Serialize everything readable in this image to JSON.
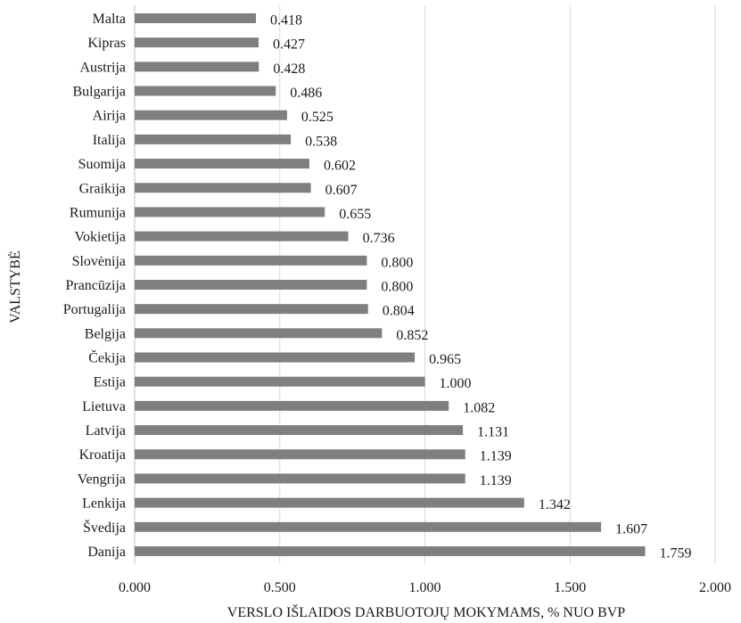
{
  "chart_data": {
    "type": "bar",
    "orientation": "horizontal",
    "categories": [
      "Malta",
      "Kipras",
      "Austrija",
      "Bulgarija",
      "Airija",
      "Italija",
      "Suomija",
      "Graikija",
      "Rumunija",
      "Vokietija",
      "Slovėnija",
      "Prancūzija",
      "Portugalija",
      "Belgija",
      "Čekija",
      "Estija",
      "Lietuva",
      "Latvija",
      "Kroatija",
      "Vengrija",
      "Lenkija",
      "Švedija",
      "Danija"
    ],
    "values": [
      0.418,
      0.427,
      0.428,
      0.486,
      0.525,
      0.538,
      0.602,
      0.607,
      0.655,
      0.736,
      0.8,
      0.8,
      0.804,
      0.852,
      0.965,
      1.0,
      1.082,
      1.131,
      1.139,
      1.139,
      1.342,
      1.607,
      1.759
    ],
    "value_labels": [
      "0.418",
      "0.427",
      "0.428",
      "0.486",
      "0.525",
      "0.538",
      "0.602",
      "0.607",
      "0.655",
      "0.736",
      "0.800",
      "0.800",
      "0.804",
      "0.852",
      "0.965",
      "1.000",
      "1.082",
      "1.131",
      "1.139",
      "1.139",
      "1.342",
      "1.607",
      "1.759"
    ],
    "xlabel": "VERSLO IŠLAIDOS DARBUOTOJŲ MOKYMAMS, % NUO BVP",
    "ylabel": "VALSTYBĖ",
    "xlim": [
      0,
      2.0
    ],
    "xticks": [
      0,
      0.5,
      1.0,
      1.5,
      2.0
    ],
    "xtick_labels": [
      "0.000",
      "0.500",
      "1.000",
      "1.500",
      "2.000"
    ],
    "grid": "vertical",
    "legend": "none",
    "bar_color": "#7f7f7f"
  }
}
